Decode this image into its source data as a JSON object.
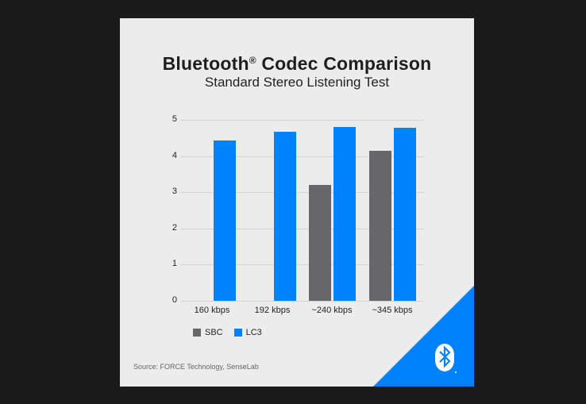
{
  "title": "Bluetooth",
  "title_mark": "®",
  "title_rest": " Codec Comparison",
  "subtitle": "Standard Stereo Listening Test",
  "source": "Source: FORCE Technology, SenseLab",
  "colors": {
    "sbc": "#67676a",
    "lc3": "#0082fc",
    "background": "#ececec",
    "frame": "#1a1a1a"
  },
  "legend": [
    {
      "label": "SBC",
      "color": "#67676a"
    },
    {
      "label": "LC3",
      "color": "#0082fc"
    }
  ],
  "y_ticks": [
    "0",
    "1",
    "2",
    "3",
    "4",
    "5"
  ],
  "logo": "bluetooth-logo",
  "chart_data": {
    "type": "bar",
    "title": "Bluetooth® Codec Comparison",
    "subtitle": "Standard Stereo Listening Test",
    "categories": [
      "160 kbps",
      "192 kbps",
      "~240 kbps",
      "~345 kbps"
    ],
    "series": [
      {
        "name": "SBC",
        "values": [
          null,
          null,
          3.2,
          4.14
        ]
      },
      {
        "name": "LC3",
        "values": [
          4.43,
          4.67,
          4.8,
          4.78
        ]
      }
    ],
    "xlabel": "",
    "ylabel": "",
    "ylim": [
      0,
      5
    ],
    "yticks": [
      0,
      1,
      2,
      3,
      4,
      5
    ],
    "grid": true,
    "legend_position": "bottom-left",
    "annotations": [
      "Source: FORCE Technology, SenseLab"
    ]
  }
}
